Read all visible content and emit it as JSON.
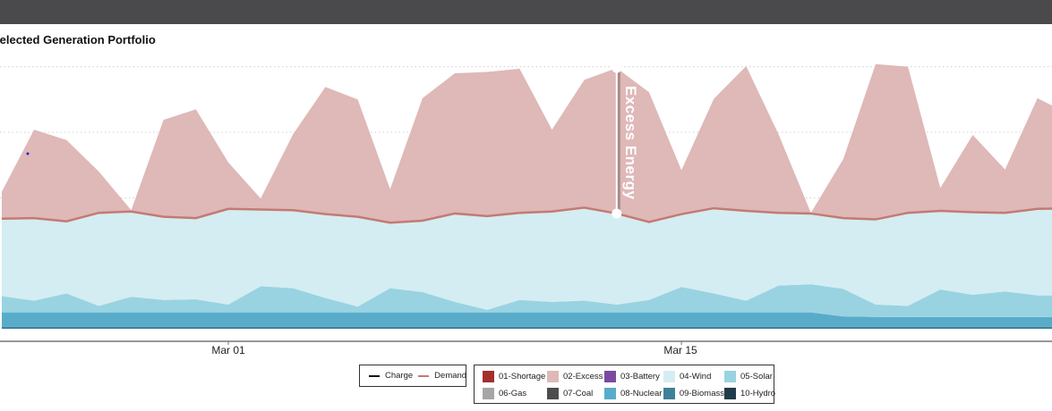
{
  "header": {
    "title": "Selected Generation Portfolio"
  },
  "chart_data": {
    "type": "area",
    "title": "Selected Generation Portfolio",
    "xlabel": "",
    "ylabel": "",
    "x_unit": "days relative to Mar 01",
    "x": [
      -7,
      -6,
      -5,
      -4,
      -3,
      -2,
      -1,
      0,
      1,
      2,
      3,
      4,
      5,
      6,
      7,
      8,
      9,
      10,
      11,
      12,
      13,
      14,
      15,
      16,
      17,
      18,
      19,
      20,
      21,
      22,
      23,
      24,
      25,
      26
    ],
    "x_ticks": [
      {
        "value": 0,
        "label": "Mar 01"
      },
      {
        "value": 14,
        "label": "Mar 15"
      }
    ],
    "ylim": [
      0,
      40
    ],
    "y_gridlines": [
      20,
      30,
      40
    ],
    "grid": true,
    "stacked": true,
    "series": [
      {
        "name": "10-Hydro",
        "color": "#1f3d48",
        "values": [
          0,
          0,
          0,
          0,
          0,
          0,
          0,
          0,
          0,
          0,
          0,
          0,
          0,
          0,
          0,
          0,
          0,
          0,
          0,
          0,
          0,
          0,
          0,
          0,
          0,
          0,
          0,
          0,
          0,
          0,
          0,
          0,
          0,
          0
        ]
      },
      {
        "name": "09-Biomass",
        "color": "#3f8199",
        "values": [
          0.3,
          0.3,
          0.3,
          0.3,
          0.3,
          0.3,
          0.3,
          0.3,
          0.3,
          0.3,
          0.3,
          0.3,
          0.3,
          0.3,
          0.3,
          0.3,
          0.3,
          0.3,
          0.3,
          0.3,
          0.3,
          0.3,
          0.3,
          0.3,
          0.3,
          0.3,
          0.3,
          0.3,
          0.3,
          0.3,
          0.3,
          0.3,
          0.3,
          0.3
        ]
      },
      {
        "name": "08-Nuclear",
        "color": "#58acc9",
        "values": [
          2.2,
          2.2,
          2.2,
          2.2,
          2.2,
          2.2,
          2.2,
          2.2,
          2.2,
          2.2,
          2.2,
          2.2,
          2.2,
          2.2,
          2.2,
          2.2,
          2.2,
          2.2,
          2.2,
          2.2,
          2.2,
          2.2,
          2.2,
          2.2,
          2.2,
          2.2,
          1.6,
          1.5,
          1.5,
          1.5,
          1.5,
          1.5,
          1.5,
          1.5
        ]
      },
      {
        "name": "05-Solar",
        "color": "#99d3e1",
        "values": [
          2.5,
          1.8,
          2.9,
          1.0,
          2.4,
          1.9,
          2.0,
          1.2,
          4.0,
          3.7,
          2.2,
          0.9,
          3.7,
          3.1,
          1.6,
          0.4,
          1.9,
          1.6,
          1.8,
          1.2,
          1.9,
          3.9,
          2.9,
          1.8,
          4.1,
          4.3,
          4.2,
          1.9,
          1.7,
          4.2,
          3.4,
          3.9,
          3.3,
          3.3
        ]
      },
      {
        "name": "04-Wind",
        "color": "#d4edf2",
        "values": [
          11.8,
          12.6,
          11.0,
          14.2,
          13.0,
          12.7,
          12.4,
          14.6,
          11.7,
          11.9,
          12.8,
          13.7,
          10.0,
          10.9,
          13.5,
          14.3,
          13.3,
          13.8,
          14.2,
          13.9,
          11.9,
          11.1,
          13.0,
          13.7,
          11.1,
          10.8,
          10.8,
          13.0,
          14.2,
          12.0,
          12.6,
          12.0,
          13.2,
          13.3
        ]
      },
      {
        "name": "02-Excess",
        "color": "#dfb8b8",
        "values": [
          4.1,
          13.5,
          12.4,
          6.3,
          0.2,
          14.8,
          16.6,
          7.1,
          1.7,
          11.6,
          19.4,
          17.9,
          5.1,
          18.7,
          21.4,
          22.0,
          22.0,
          12.5,
          19.5,
          22.2,
          19.8,
          6.7,
          16.7,
          22.1,
          12.0,
          0.1,
          9.0,
          23.7,
          22.3,
          3.5,
          11.8,
          6.6,
          16.9,
          14.3
        ]
      }
    ],
    "lines": [
      {
        "name": "Demand",
        "color": "#c47a73",
        "values": [
          16.8,
          16.9,
          16.4,
          17.7,
          17.9,
          17.1,
          16.9,
          18.3,
          18.2,
          18.1,
          17.5,
          17.1,
          16.2,
          16.5,
          17.6,
          17.2,
          17.7,
          17.9,
          18.5,
          17.6,
          16.3,
          17.5,
          18.4,
          18.0,
          17.7,
          17.6,
          16.9,
          16.7,
          17.7,
          18.0,
          17.8,
          17.7,
          18.3,
          18.4
        ]
      }
    ],
    "annotation": {
      "label": "Excess Energy",
      "x": 12
    },
    "legend_lines": [
      {
        "label": "Charge",
        "color": "#111111"
      },
      {
        "label": "Demand",
        "color": "#c47a73"
      }
    ],
    "legend_areas": [
      {
        "label": "01-Shortage",
        "color": "#a3302d"
      },
      {
        "label": "02-Excess",
        "color": "#dfb8b8"
      },
      {
        "label": "03-Battery",
        "color": "#7b4aa0"
      },
      {
        "label": "04-Wind",
        "color": "#d4edf2"
      },
      {
        "label": "05-Solar",
        "color": "#99d3e1"
      },
      {
        "label": "06-Gas",
        "color": "#a6a6a6"
      },
      {
        "label": "07-Coal",
        "color": "#4d4d4d"
      },
      {
        "label": "08-Nuclear",
        "color": "#58acc9"
      },
      {
        "label": "09-Biomass",
        "color": "#3f8199"
      },
      {
        "label": "10-Hydro",
        "color": "#1f3d48"
      }
    ],
    "legend_placement": "bottom"
  }
}
